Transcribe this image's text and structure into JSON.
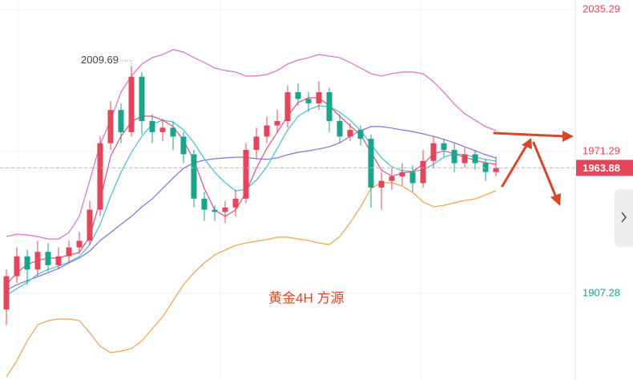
{
  "chart_data": {
    "type": "candlestick",
    "annotation": "黄金4H 方源",
    "high_marker": 2009.69,
    "high_marker_index": 12,
    "current_price": 1963.88,
    "ylim": [
      1868.2,
      2039.6
    ],
    "yticks": [
      1907.28,
      1971.29,
      2035.29
    ],
    "grid": true,
    "up_color": "#e5455a",
    "down_color": "#19a58a",
    "categories": [
      null,
      null,
      null,
      null,
      null,
      null,
      null,
      null,
      null,
      null,
      null,
      null,
      null,
      null,
      null,
      null,
      null,
      null,
      null,
      null,
      null,
      null,
      null,
      null,
      null,
      null,
      null,
      null,
      null,
      null,
      null,
      null,
      null,
      null,
      null,
      null,
      null,
      null,
      null,
      null,
      null,
      null,
      null,
      null,
      null,
      null,
      null,
      null
    ],
    "open": [
      1900,
      1915,
      1924,
      1918,
      1926,
      1920,
      1924,
      1928,
      1931,
      1945,
      1975,
      1990,
      1980,
      2005,
      1985,
      1980,
      1982,
      1978,
      1970,
      1950,
      1945,
      1944,
      1946,
      1950,
      1972,
      1978,
      1983,
      1985,
      1998,
      1995,
      1993,
      1998,
      1985,
      1978,
      1981,
      1977,
      1955,
      1958,
      1960,
      1962,
      1957,
      1967,
      1975,
      1972,
      1966,
      1970,
      1966,
      1962
    ],
    "close": [
      1915,
      1924,
      1918,
      1926,
      1920,
      1924,
      1928,
      1931,
      1945,
      1975,
      1990,
      1980,
      2005,
      1985,
      1980,
      1982,
      1978,
      1970,
      1950,
      1945,
      1944,
      1946,
      1950,
      1972,
      1978,
      1983,
      1985,
      1998,
      1995,
      1993,
      1998,
      1985,
      1978,
      1981,
      1977,
      1955,
      1958,
      1960,
      1962,
      1957,
      1967,
      1975,
      1972,
      1966,
      1970,
      1966,
      1962,
      1963.88
    ],
    "high": [
      1918,
      1928,
      1927,
      1931,
      1930,
      1928,
      1931,
      1935,
      1949,
      1978,
      1994,
      1993,
      2009.69,
      2007,
      1988,
      1986,
      1985,
      1980,
      1972,
      1953,
      1947,
      1949,
      1954,
      1975,
      1982,
      1987,
      1990,
      2001,
      2002,
      1998,
      2003,
      2000,
      1988,
      1984,
      1983,
      1979,
      1962,
      1964,
      1966,
      1965,
      1972,
      1978,
      1977,
      1975,
      1973,
      1972,
      1968,
      1969
    ],
    "low": [
      1893,
      1912,
      1911,
      1915,
      1917,
      1918,
      1921,
      1925,
      1929,
      1942,
      1972,
      1975,
      1978,
      1979,
      1975,
      1976,
      1972,
      1966,
      1946,
      1940,
      1940,
      1939,
      1942,
      1948,
      1968,
      1975,
      1980,
      1982,
      1992,
      1989,
      1990,
      1980,
      1975,
      1976,
      1974,
      1946,
      1945,
      1954,
      1956,
      1953,
      1955,
      1964,
      1969,
      1962,
      1964,
      1963,
      1958,
      1960
    ],
    "lines": [
      {
        "color": "#d86fd0",
        "values": [
          1932.9,
          1934.0,
          1933.6,
          1932.9,
          1931.8,
          1931.8,
          1934.7,
          1942.0,
          1958.2,
          1974.5,
          1985.4,
          1998.0,
          2005.3,
          2010.7,
          2013.6,
          2015.0,
          2017.2,
          2016.1,
          2013.6,
          2011.4,
          2008.9,
          2007.8,
          2007.1,
          2005.3,
          2005.3,
          2006.0,
          2007.8,
          2010.7,
          2012.5,
          2013.6,
          2015.0,
          2014.3,
          2013.6,
          2011.4,
          2008.9,
          2006.4,
          2005.3,
          2006.4,
          2007.1,
          2007.1,
          2006.4,
          2002.7,
          1998.0,
          1992.6,
          1988.3,
          1985.4,
          1982.5,
          1980.7
        ]
      },
      {
        "color": "#f5a04a",
        "values": [
          1869.6,
          1876.9,
          1885.9,
          1893.1,
          1894.95,
          1895.7,
          1895.7,
          1894.95,
          1889.5,
          1883.4,
          1880.5,
          1881.2,
          1882.3,
          1885.9,
          1891.3,
          1896.7,
          1904.0,
          1911.2,
          1916.6,
          1921.0,
          1924.6,
          1926.8,
          1928.9,
          1930.0,
          1930.8,
          1931.5,
          1932.6,
          1932.6,
          1931.8,
          1931.1,
          1930.0,
          1929.3,
          1932.9,
          1939.1,
          1946.3,
          1954.6,
          1957.2,
          1957.2,
          1955.7,
          1952.8,
          1948.5,
          1946.3,
          1947.0,
          1948.1,
          1949.2,
          1949.9,
          1951.7,
          1953.5
        ]
      },
      {
        "color": "#8a6de0",
        "values": [
          1908.7,
          1911.2,
          1913.0,
          1914.8,
          1916.6,
          1918.5,
          1921.0,
          1923.2,
          1926.4,
          1931.1,
          1934.7,
          1938.4,
          1942.0,
          1946.3,
          1949.9,
          1954.6,
          1959.3,
          1963.7,
          1966.2,
          1967.3,
          1968.0,
          1968.4,
          1968.7,
          1968.7,
          1968.0,
          1967.7,
          1968.4,
          1969.8,
          1970.9,
          1971.6,
          1972.4,
          1973.4,
          1975.2,
          1978.1,
          1980.7,
          1982.5,
          1982.5,
          1981.8,
          1981.0,
          1980.3,
          1979.2,
          1978.1,
          1976.7,
          1975.2,
          1973.4,
          1971.6,
          1969.8,
          1968.4
        ]
      },
      {
        "color": "#3cc3d8",
        "values": [
          1906.5,
          1909.4,
          1912.3,
          1915.9,
          1918.1,
          1919.5,
          1921.4,
          1923.9,
          1929.3,
          1938.4,
          1951.0,
          1961.9,
          1970.9,
          1978.1,
          1983.6,
          1985.4,
          1984.6,
          1981.0,
          1975.2,
          1968.0,
          1961.9,
          1957.2,
          1953.5,
          1954.3,
          1958.3,
          1964.4,
          1972.7,
          1981.0,
          1987.2,
          1990.1,
          1991.9,
          1991.5,
          1989.0,
          1985.4,
          1980.7,
          1974.5,
          1968.4,
          1964.4,
          1962.6,
          1962.2,
          1963.0,
          1965.5,
          1968.7,
          1970.2,
          1969.8,
          1968.7,
          1967.7,
          1966.9
        ]
      },
      {
        "color": "#e0507a",
        "values": [
          1911.2,
          1916.6,
          1920.3,
          1922.1,
          1923.2,
          1923.2,
          1924.6,
          1925.7,
          1932.9,
          1949.2,
          1969.1,
          1978.1,
          1984.6,
          1987.2,
          1987.2,
          1985.4,
          1982.5,
          1976.3,
          1967.3,
          1954.6,
          1944.9,
          1942.0,
          1944.9,
          1952.8,
          1963.7,
          1972.7,
          1979.9,
          1987.2,
          1993.3,
          1995.5,
          1995.5,
          1991.9,
          1987.2,
          1982.8,
          1978.9,
          1970.9,
          1962.9,
          1960.1,
          1961.5,
          1962.2,
          1965.5,
          1970.2,
          1971.6,
          1970.2,
          1968.7,
          1967.3,
          1966.2,
          1965.5
        ]
      }
    ]
  }
}
